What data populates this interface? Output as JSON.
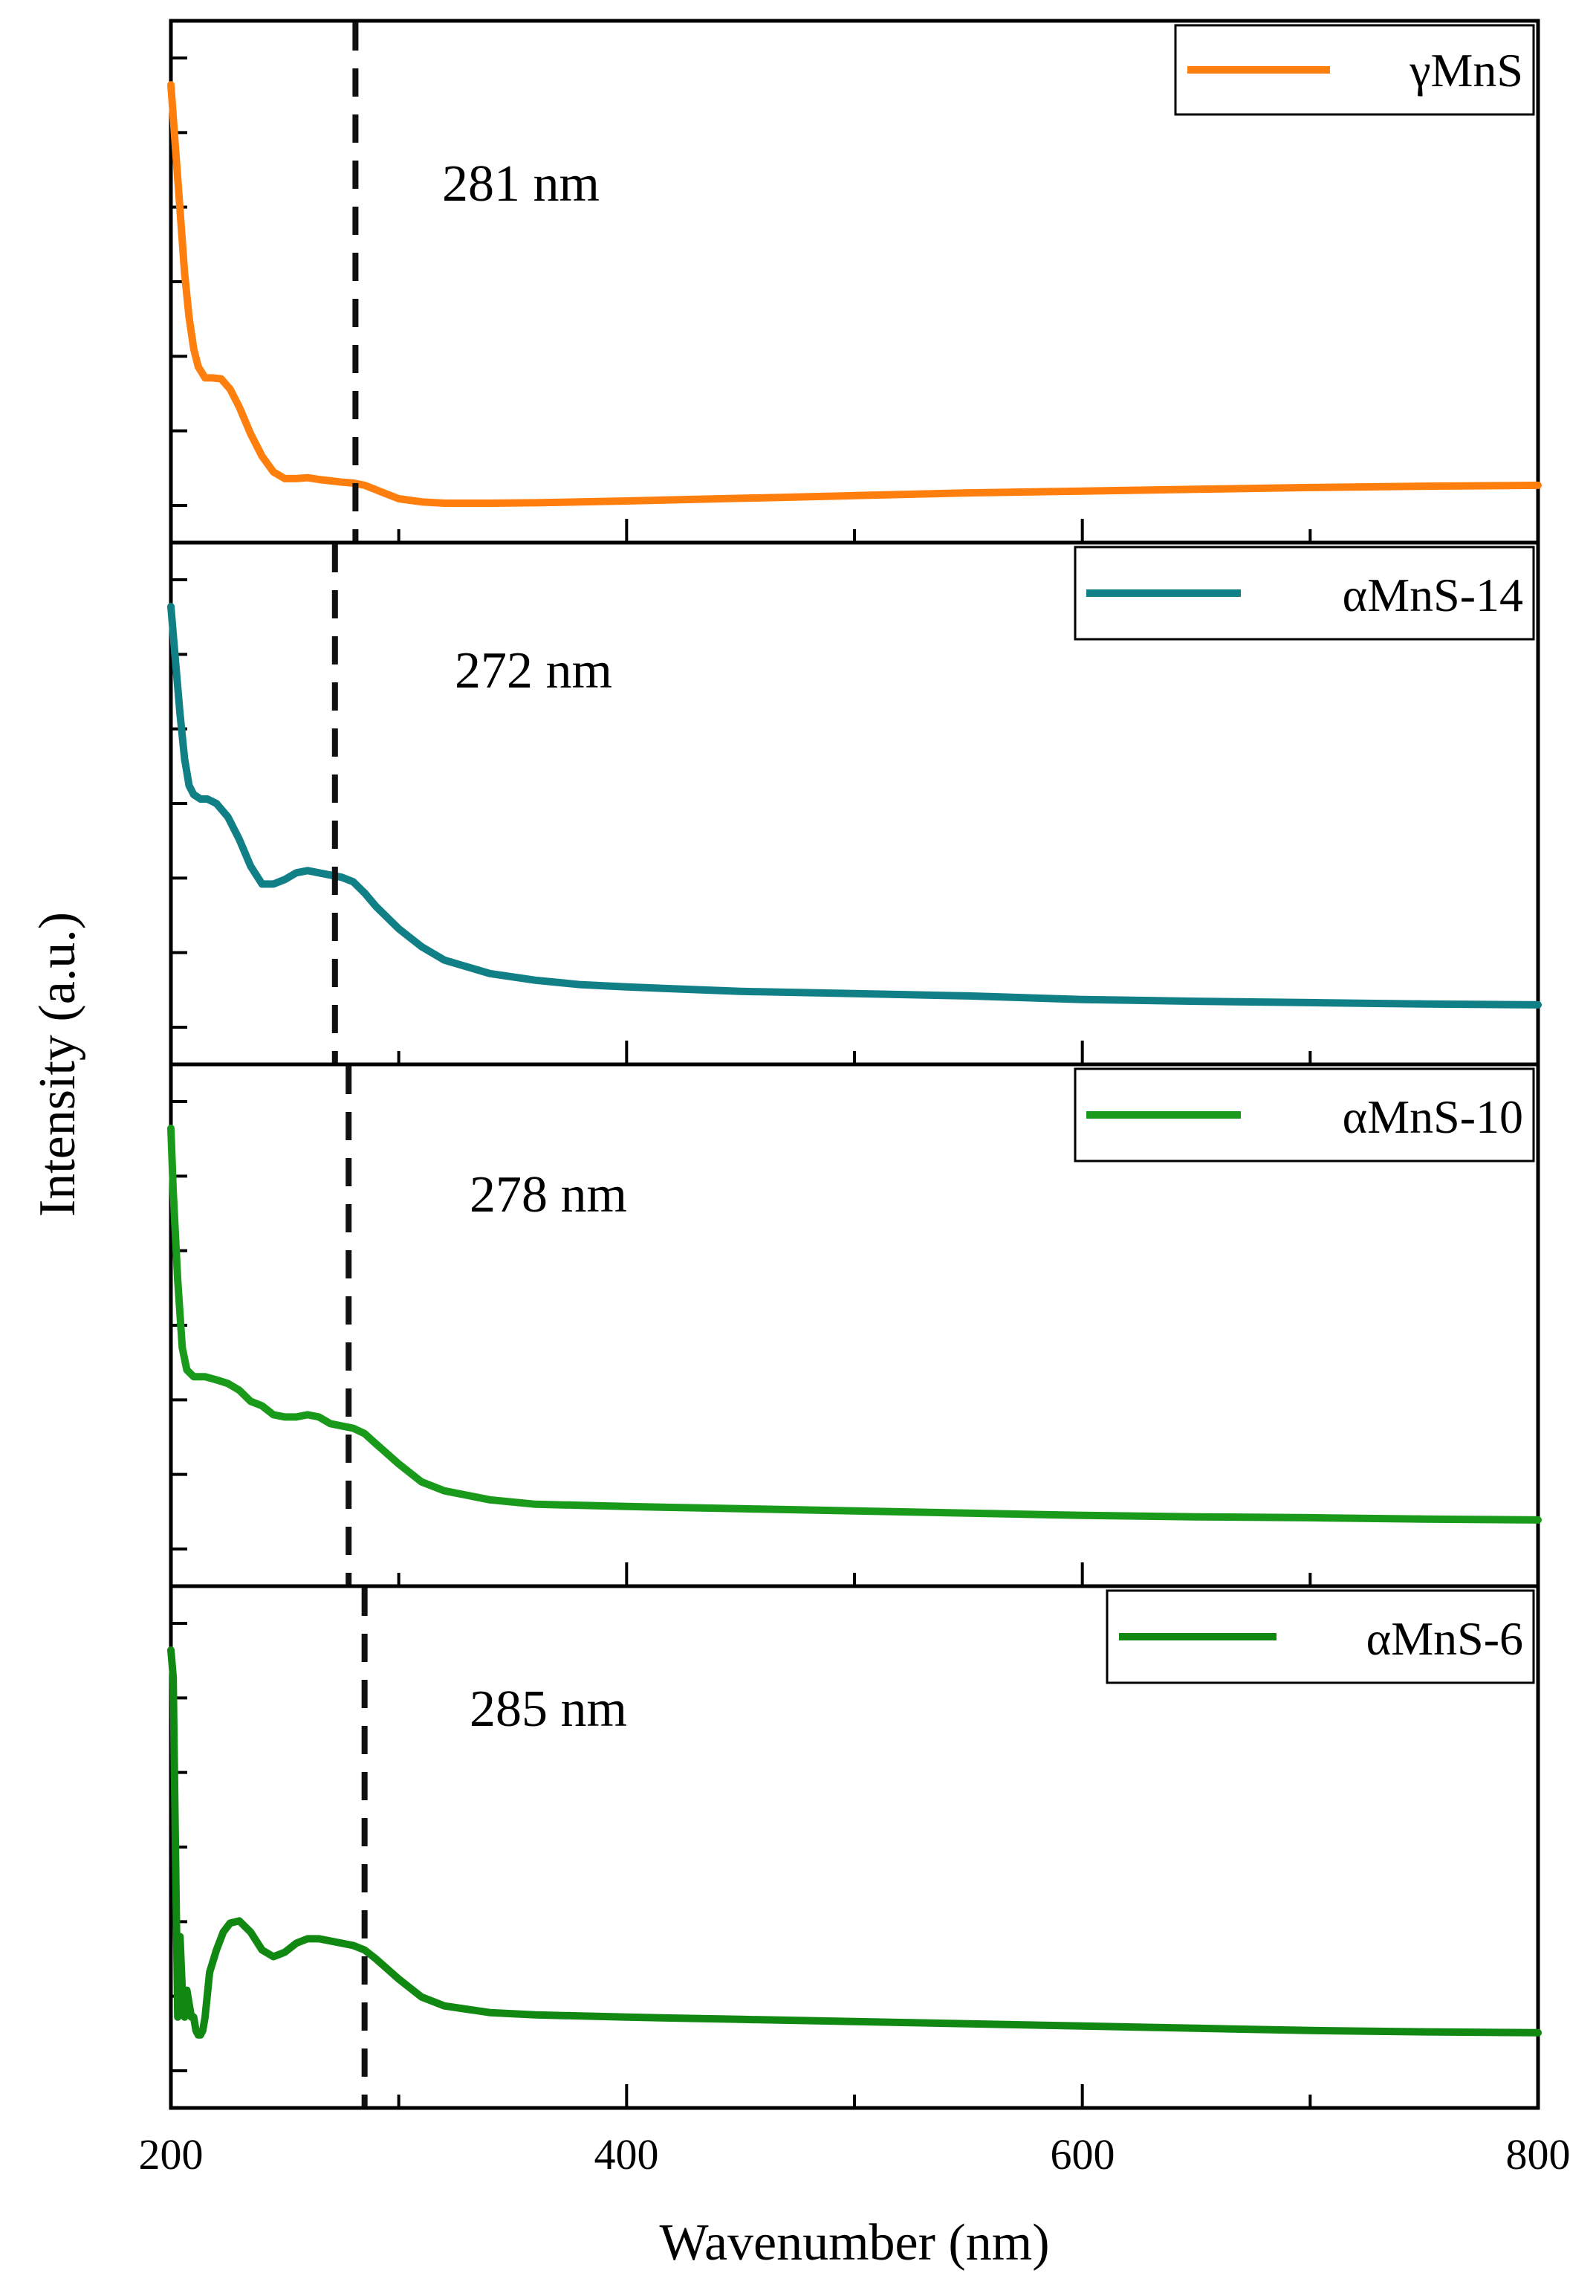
{
  "chart_data": {
    "type": "line",
    "layout": "stacked-panels",
    "xlabel": "Wavenumber (nm)",
    "ylabel": "Intensity (a.u.)",
    "xlim": [
      200,
      800
    ],
    "xticks": [
      "200",
      "400",
      "600",
      "800"
    ],
    "ylim": [
      0,
      1
    ],
    "panels": [
      {
        "series_name": "γMnS",
        "color": "#ff7f0e",
        "annotation": "281 nm",
        "marker_x": 281,
        "x": [
          200,
          202,
          204,
          206,
          208,
          210,
          212,
          215,
          218,
          222,
          226,
          230,
          235,
          240,
          245,
          250,
          255,
          260,
          265,
          270,
          275,
          280,
          285,
          290,
          295,
          300,
          310,
          320,
          340,
          360,
          400,
          450,
          500,
          550,
          600,
          650,
          700,
          750,
          800
        ],
        "y": [
          0.94,
          0.8,
          0.66,
          0.52,
          0.42,
          0.35,
          0.31,
          0.285,
          0.285,
          0.283,
          0.26,
          0.22,
          0.16,
          0.11,
          0.075,
          0.06,
          0.06,
          0.062,
          0.058,
          0.055,
          0.052,
          0.05,
          0.045,
          0.035,
          0.025,
          0.015,
          0.008,
          0.005,
          0.005,
          0.006,
          0.01,
          0.016,
          0.022,
          0.028,
          0.032,
          0.036,
          0.04,
          0.043,
          0.045
        ]
      },
      {
        "series_name": "αMnS-14",
        "color": "#117f86",
        "annotation": "272 nm",
        "marker_x": 272,
        "x": [
          200,
          202,
          204,
          206,
          208,
          210,
          213,
          216,
          220,
          225,
          230,
          235,
          240,
          245,
          250,
          255,
          260,
          265,
          270,
          275,
          280,
          285,
          290,
          300,
          310,
          320,
          340,
          360,
          380,
          400,
          450,
          500,
          550,
          600,
          650,
          700,
          750,
          800
        ],
        "y": [
          0.94,
          0.82,
          0.7,
          0.6,
          0.54,
          0.52,
          0.51,
          0.51,
          0.5,
          0.47,
          0.42,
          0.36,
          0.32,
          0.32,
          0.33,
          0.345,
          0.35,
          0.345,
          0.34,
          0.335,
          0.325,
          0.3,
          0.27,
          0.22,
          0.18,
          0.15,
          0.12,
          0.105,
          0.095,
          0.09,
          0.08,
          0.075,
          0.07,
          0.062,
          0.058,
          0.055,
          0.052,
          0.05
        ]
      },
      {
        "series_name": "αMnS-10",
        "color": "#1a9a1a",
        "annotation": "278 nm",
        "marker_x": 278,
        "x": [
          200,
          201,
          203,
          205,
          207,
          210,
          215,
          220,
          225,
          230,
          235,
          240,
          245,
          250,
          255,
          260,
          265,
          270,
          275,
          280,
          285,
          290,
          300,
          310,
          320,
          340,
          360,
          400,
          450,
          500,
          550,
          600,
          650,
          700,
          750,
          800
        ],
        "y": [
          0.94,
          0.8,
          0.6,
          0.45,
          0.4,
          0.385,
          0.385,
          0.378,
          0.37,
          0.355,
          0.33,
          0.32,
          0.3,
          0.295,
          0.295,
          0.3,
          0.295,
          0.28,
          0.275,
          0.27,
          0.258,
          0.235,
          0.19,
          0.15,
          0.13,
          0.11,
          0.1,
          0.095,
          0.09,
          0.085,
          0.08,
          0.075,
          0.072,
          0.07,
          0.067,
          0.065
        ]
      },
      {
        "series_name": "αMnS-6",
        "color": "#118811",
        "annotation": "285 nm",
        "marker_x": 285,
        "x": [
          200,
          201,
          202,
          203,
          204,
          205,
          206,
          207,
          208,
          209,
          210,
          211,
          212,
          213,
          214,
          215,
          217,
          220,
          223,
          226,
          230,
          235,
          240,
          245,
          250,
          255,
          260,
          265,
          270,
          275,
          280,
          285,
          290,
          300,
          310,
          320,
          340,
          360,
          400,
          450,
          500,
          550,
          600,
          650,
          700,
          750,
          800
        ],
        "y": [
          0.94,
          0.88,
          0.5,
          0.12,
          0.3,
          0.18,
          0.12,
          0.18,
          0.15,
          0.12,
          0.12,
          0.09,
          0.08,
          0.08,
          0.09,
          0.12,
          0.22,
          0.27,
          0.31,
          0.33,
          0.335,
          0.31,
          0.27,
          0.255,
          0.265,
          0.285,
          0.295,
          0.295,
          0.29,
          0.285,
          0.28,
          0.27,
          0.25,
          0.205,
          0.165,
          0.145,
          0.13,
          0.125,
          0.12,
          0.115,
          0.11,
          0.105,
          0.1,
          0.095,
          0.09,
          0.087,
          0.085
        ]
      }
    ]
  }
}
